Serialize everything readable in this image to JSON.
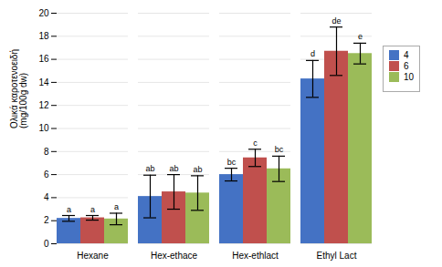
{
  "chart_data": {
    "type": "bar",
    "categories": [
      "Hexane",
      "Hex-ethace",
      "Hex-ethlact",
      "Ethyl Lact"
    ],
    "series": [
      {
        "name": "4",
        "color": "#4472C4",
        "values": [
          2.2,
          4.1,
          6.0,
          14.3
        ],
        "errors": [
          0.25,
          1.85,
          0.55,
          1.6
        ],
        "annotations": [
          "a",
          "ab",
          "bc",
          "d"
        ]
      },
      {
        "name": "6",
        "color": "#C0504D",
        "values": [
          2.25,
          4.5,
          7.45,
          16.7
        ],
        "errors": [
          0.2,
          1.5,
          0.75,
          2.1
        ],
        "annotations": [
          "a",
          "ab",
          "c",
          "de"
        ]
      },
      {
        "name": "10",
        "color": "#9BBB59",
        "values": [
          2.15,
          4.4,
          6.5,
          16.5
        ],
        "errors": [
          0.5,
          1.5,
          1.1,
          0.9
        ],
        "annotations": [
          "a",
          "ab",
          "bc",
          "e"
        ]
      }
    ],
    "ylabel": "Ολικά καροτενοειδή\n(mg/100g dw)",
    "ylim": [
      0,
      20
    ],
    "yticks": [
      0,
      2,
      4,
      6,
      8,
      10,
      12,
      14,
      16,
      18,
      20
    ],
    "grid": true,
    "legend": "right"
  }
}
